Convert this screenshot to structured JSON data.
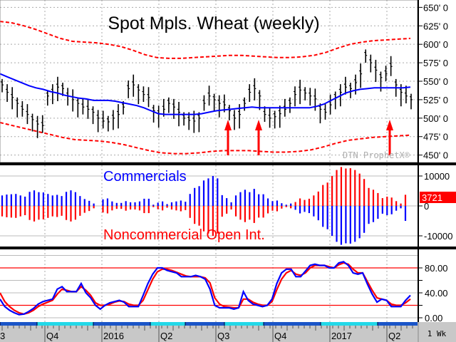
{
  "chart_data": [
    {
      "panel": "price",
      "type": "ohlc",
      "title": "Spot Mpls. Wheat (weekly)",
      "watermark": "DTN ProphetX®",
      "y_ticks": [
        "650' 0",
        "625' 0",
        "600' 0",
        "575' 0",
        "550' 0",
        "525' 0",
        "500' 0",
        "475' 0",
        "450' 0"
      ],
      "ylim": [
        440,
        660
      ],
      "grid": true,
      "series": [
        {
          "name": "Moving Average",
          "color": "#0000ff",
          "type": "line",
          "values": [
            560,
            556,
            552,
            548,
            544,
            541,
            539,
            536,
            534,
            531,
            529,
            527,
            526,
            524,
            524,
            524,
            523,
            521,
            519,
            517,
            514,
            510,
            506,
            505,
            505,
            505,
            505,
            505,
            506,
            508,
            510,
            511,
            512,
            513,
            514,
            515,
            514,
            514,
            514,
            514,
            514,
            514,
            514,
            514,
            516,
            519,
            524,
            529,
            534,
            537,
            539,
            540,
            541,
            541,
            541,
            541,
            541,
            542
          ]
        },
        {
          "name": "Upper Band",
          "color": "#ff0000",
          "style": "dashed",
          "type": "line",
          "values": [
            631,
            629,
            625,
            620,
            614,
            608,
            604,
            603,
            602,
            600,
            597,
            592,
            586,
            582,
            581,
            581,
            582,
            583,
            584,
            585,
            585,
            584,
            583,
            582,
            582,
            583,
            585,
            589,
            595,
            600,
            603,
            605,
            606,
            607,
            608
          ]
        },
        {
          "name": "Lower Band",
          "color": "#ff0000",
          "style": "dashed",
          "type": "line",
          "values": [
            494,
            490,
            486,
            482,
            478,
            474,
            471,
            470,
            469,
            467,
            464,
            460,
            456,
            453,
            452,
            452,
            453,
            455,
            456,
            456,
            456,
            455,
            454,
            454,
            455,
            457,
            461,
            466,
            470,
            472,
            474,
            475,
            476,
            477
          ]
        }
      ],
      "annotations": [
        {
          "type": "arrow-up",
          "color": "#ff0000",
          "approx_period": "Q3 2016 (early)"
        },
        {
          "type": "arrow-up",
          "color": "#ff0000",
          "approx_period": "Q3 2016 (mid)"
        },
        {
          "type": "arrow-up",
          "color": "#ff0000",
          "approx_period": "Q2 2017"
        }
      ]
    },
    {
      "panel": "cot",
      "type": "bar",
      "labels": {
        "top": "Commercials",
        "bottom": "Noncommercial Open Int."
      },
      "y_ticks": [
        "10000",
        "0",
        "-10000"
      ],
      "last_value_badge": "3721",
      "series": [
        {
          "name": "Commercials",
          "color": "#0000ff",
          "values": [
            3500,
            3800,
            3900,
            4000,
            3500,
            3100,
            4700,
            5200,
            4600,
            4500,
            4000,
            3500,
            3700,
            3300,
            4700,
            5200,
            4600,
            3300,
            2300,
            1700,
            800,
            0,
            2200,
            2500,
            1500,
            1000,
            1000,
            1600,
            1200,
            1200,
            1500,
            2400,
            2400,
            400,
            1100,
            1500,
            600,
            1200,
            1500,
            1800,
            1400,
            4000,
            6000,
            6600,
            8500,
            9200,
            10000,
            9200,
            3600,
            2600,
            1200,
            3500,
            4600,
            5400,
            4600,
            5700,
            3900,
            3900,
            2500,
            1600,
            1800,
            900,
            400,
            800,
            -1300,
            -2500,
            -2000,
            -2400,
            -3500,
            -4800,
            -7000,
            -7800,
            -10000,
            -12000,
            -13000,
            -12500,
            -12600,
            -12000,
            -10800,
            -9000,
            -6000,
            -5400,
            -4300,
            -2600,
            -3100,
            -2800,
            -1600,
            -800,
            -5000
          ]
        },
        {
          "name": "Noncommercial Open Int.",
          "color": "#ff0000",
          "values": [
            -3500,
            -3800,
            -3900,
            -4000,
            -3500,
            -3100,
            -4700,
            -5200,
            -4600,
            -4500,
            -4000,
            -3500,
            -3700,
            -3300,
            -4700,
            -5200,
            -4600,
            -3300,
            -2300,
            -1700,
            -800,
            0,
            -2200,
            -2500,
            -1500,
            -1000,
            -1000,
            -1600,
            -1200,
            -1200,
            -1500,
            -2400,
            -2400,
            -400,
            -1100,
            -1500,
            -600,
            -1200,
            -1500,
            -1800,
            -1400,
            -4000,
            -6000,
            -6600,
            -8500,
            -9200,
            -10000,
            -9200,
            -3600,
            -2600,
            -1200,
            -3500,
            -4600,
            -5400,
            -4600,
            -5700,
            -3900,
            -3900,
            -2500,
            -1600,
            -1800,
            -900,
            -400,
            -800,
            1300,
            2500,
            2000,
            2400,
            3500,
            4800,
            7000,
            7800,
            10000,
            12000,
            13000,
            12500,
            12600,
            12000,
            10800,
            9000,
            6000,
            5400,
            4300,
            2600,
            3100,
            2800,
            1600,
            800,
            3721
          ]
        }
      ]
    },
    {
      "panel": "stochastic",
      "type": "line",
      "y_ticks": [
        "80.00",
        "40.00",
        "0.00"
      ],
      "ylim": [
        0,
        100
      ],
      "reference_lines": [
        80,
        20
      ],
      "series": [
        {
          "name": "%K",
          "color": "#0000ff",
          "values": [
            30,
            18,
            12,
            8,
            5,
            6,
            10,
            15,
            22,
            26,
            28,
            30,
            46,
            50,
            42,
            42,
            42,
            55,
            40,
            32,
            20,
            14,
            20,
            24,
            26,
            28,
            25,
            18,
            18,
            18,
            36,
            55,
            70,
            80,
            80,
            76,
            74,
            72,
            66,
            66,
            66,
            68,
            66,
            62,
            46,
            20,
            16,
            16,
            16,
            14,
            16,
            42,
            28,
            22,
            20,
            18,
            20,
            30,
            55,
            72,
            78,
            78,
            66,
            66,
            75,
            84,
            86,
            84,
            84,
            80,
            80,
            88,
            90,
            84,
            72,
            70,
            72,
            54,
            38,
            25,
            30,
            28,
            18,
            18,
            18,
            28,
            36
          ]
        },
        {
          "name": "%D",
          "color": "#ff0000",
          "values": [
            40,
            26,
            18,
            12,
            8,
            6,
            8,
            12,
            18,
            22,
            25,
            28,
            38,
            46,
            44,
            42,
            42,
            50,
            44,
            36,
            24,
            20,
            20,
            22,
            25,
            27,
            26,
            22,
            20,
            20,
            28,
            45,
            62,
            74,
            78,
            78,
            76,
            73,
            70,
            67,
            66,
            66,
            66,
            64,
            56,
            32,
            22,
            18,
            17,
            16,
            16,
            30,
            30,
            25,
            22,
            20,
            20,
            26,
            45,
            62,
            72,
            76,
            70,
            68,
            72,
            80,
            84,
            84,
            84,
            82,
            80,
            85,
            88,
            86,
            78,
            72,
            72,
            58,
            44,
            32,
            30,
            28,
            22,
            20,
            20,
            24,
            30
          ]
        }
      ]
    }
  ],
  "x_axis": {
    "labels": [
      "3",
      "Q4",
      "2016",
      "Q2",
      "Q3",
      "Q4",
      "2017",
      "Q2"
    ],
    "interval": "1 Wk"
  }
}
